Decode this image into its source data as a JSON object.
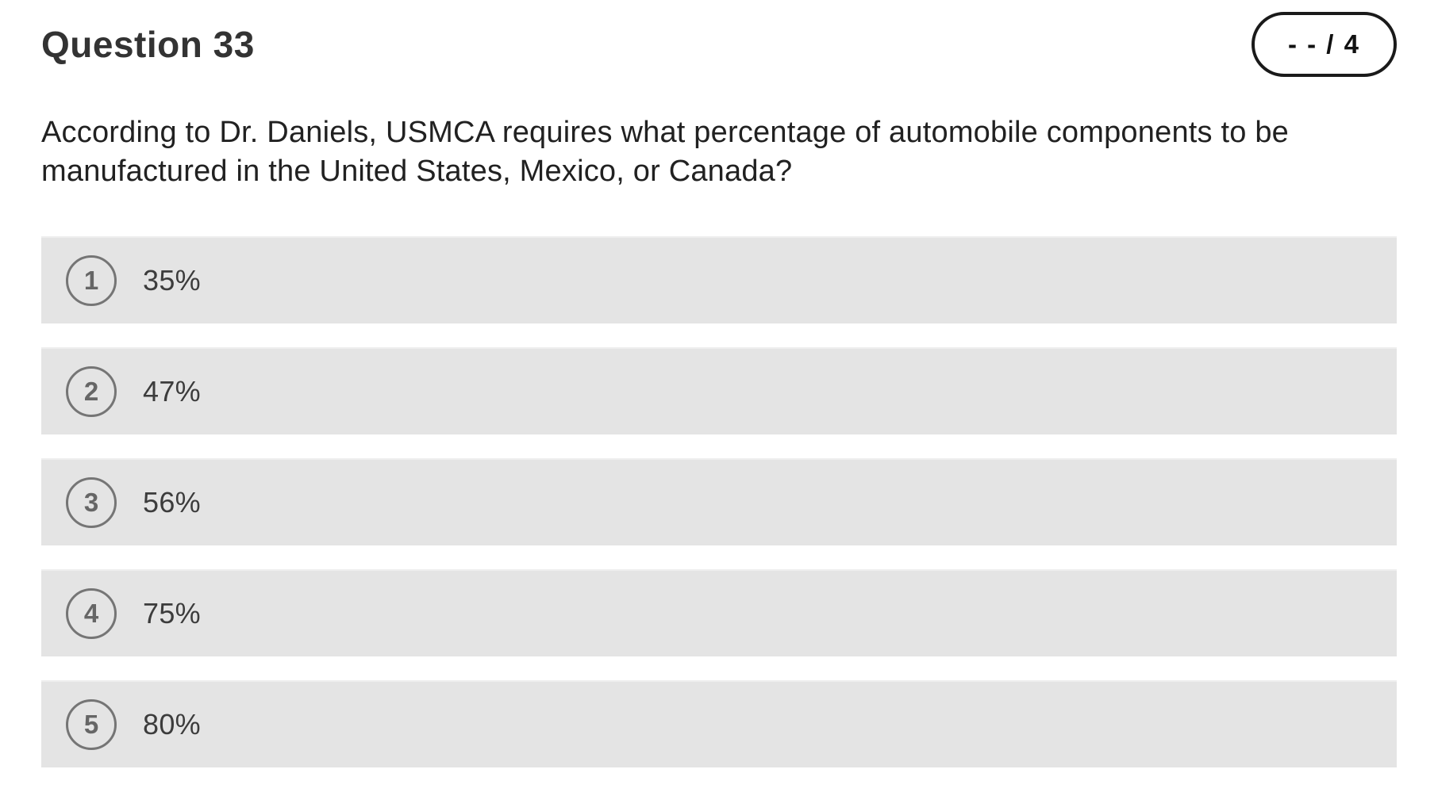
{
  "header": {
    "title": "Question 33",
    "points_badge": "- - / 4"
  },
  "question": {
    "text": "According to Dr. Daniels, USMCA requires what percentage of automobile components to be manufactured in the United States, Mexico, or Canada?"
  },
  "options": [
    {
      "number": "1",
      "label": "35%"
    },
    {
      "number": "2",
      "label": "47%"
    },
    {
      "number": "3",
      "label": "56%"
    },
    {
      "number": "4",
      "label": "75%"
    },
    {
      "number": "5",
      "label": "80%"
    }
  ],
  "colors": {
    "option_background": "#e4e4e4",
    "circle_border": "#757575",
    "circle_number": "#666666",
    "option_text": "#3c3c3c",
    "title_text": "#333333",
    "question_text": "#212121",
    "badge_border": "#1a1a1a",
    "page_background": "#ffffff"
  }
}
